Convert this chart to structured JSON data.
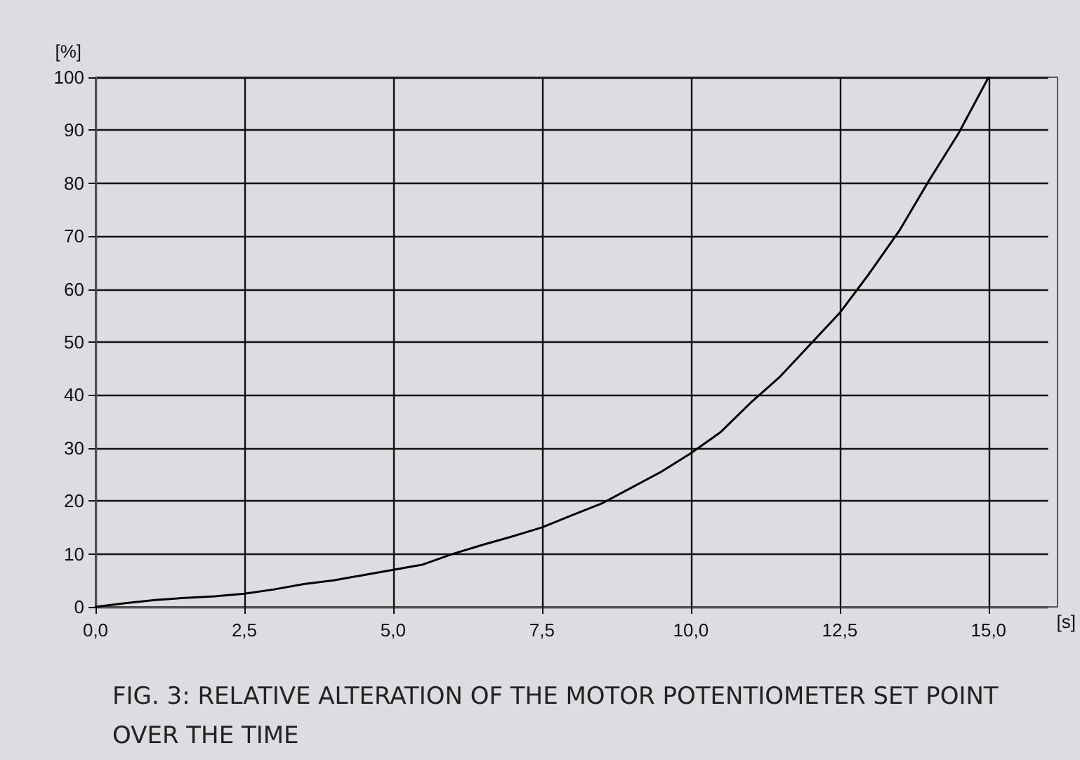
{
  "chart_data": {
    "type": "line",
    "xlabel": "[s]",
    "ylabel": "[%]",
    "annotations": [
      "FIG. 3: RELATIVE ALTERATION OF THE MOTOR POTENTIOMETER SET POINT OVER THE TIME"
    ],
    "x": [
      0,
      0.5,
      1,
      1.5,
      2,
      2.5,
      3,
      3.5,
      4,
      4.5,
      5,
      5.5,
      6,
      6.5,
      7,
      7.5,
      8,
      8.5,
      9,
      9.5,
      10,
      10.5,
      11,
      11.5,
      12,
      12.5,
      13,
      13.5,
      14,
      14.5,
      15
    ],
    "series": [
      {
        "color": "#000000",
        "values": [
          0,
          0.7,
          1.3,
          1.7,
          2,
          2.5,
          3.3,
          4.3,
          5,
          6,
          7,
          8,
          10,
          11.7,
          13.3,
          15,
          17.3,
          19.5,
          22.5,
          25.5,
          29,
          33,
          38.5,
          43.5,
          49.5,
          55.5,
          63,
          71,
          80.5,
          89.5,
          100
        ]
      }
    ],
    "xlim": [
      0,
      16
    ],
    "xticks": [
      {
        "value": 0,
        "label": "0,0"
      },
      {
        "value": 2.5,
        "label": "2,5"
      },
      {
        "value": 5,
        "label": "5,0"
      },
      {
        "value": 7.5,
        "label": "7,5"
      },
      {
        "value": 10,
        "label": "10,0"
      },
      {
        "value": 12.5,
        "label": "12,5"
      },
      {
        "value": 15,
        "label": "15,0"
      }
    ],
    "ylim": [
      0,
      100
    ],
    "yticks": [
      0,
      10,
      20,
      30,
      40,
      50,
      60,
      70,
      80,
      90,
      100
    ],
    "grid": true,
    "marker": "none",
    "line_style": "solid"
  }
}
